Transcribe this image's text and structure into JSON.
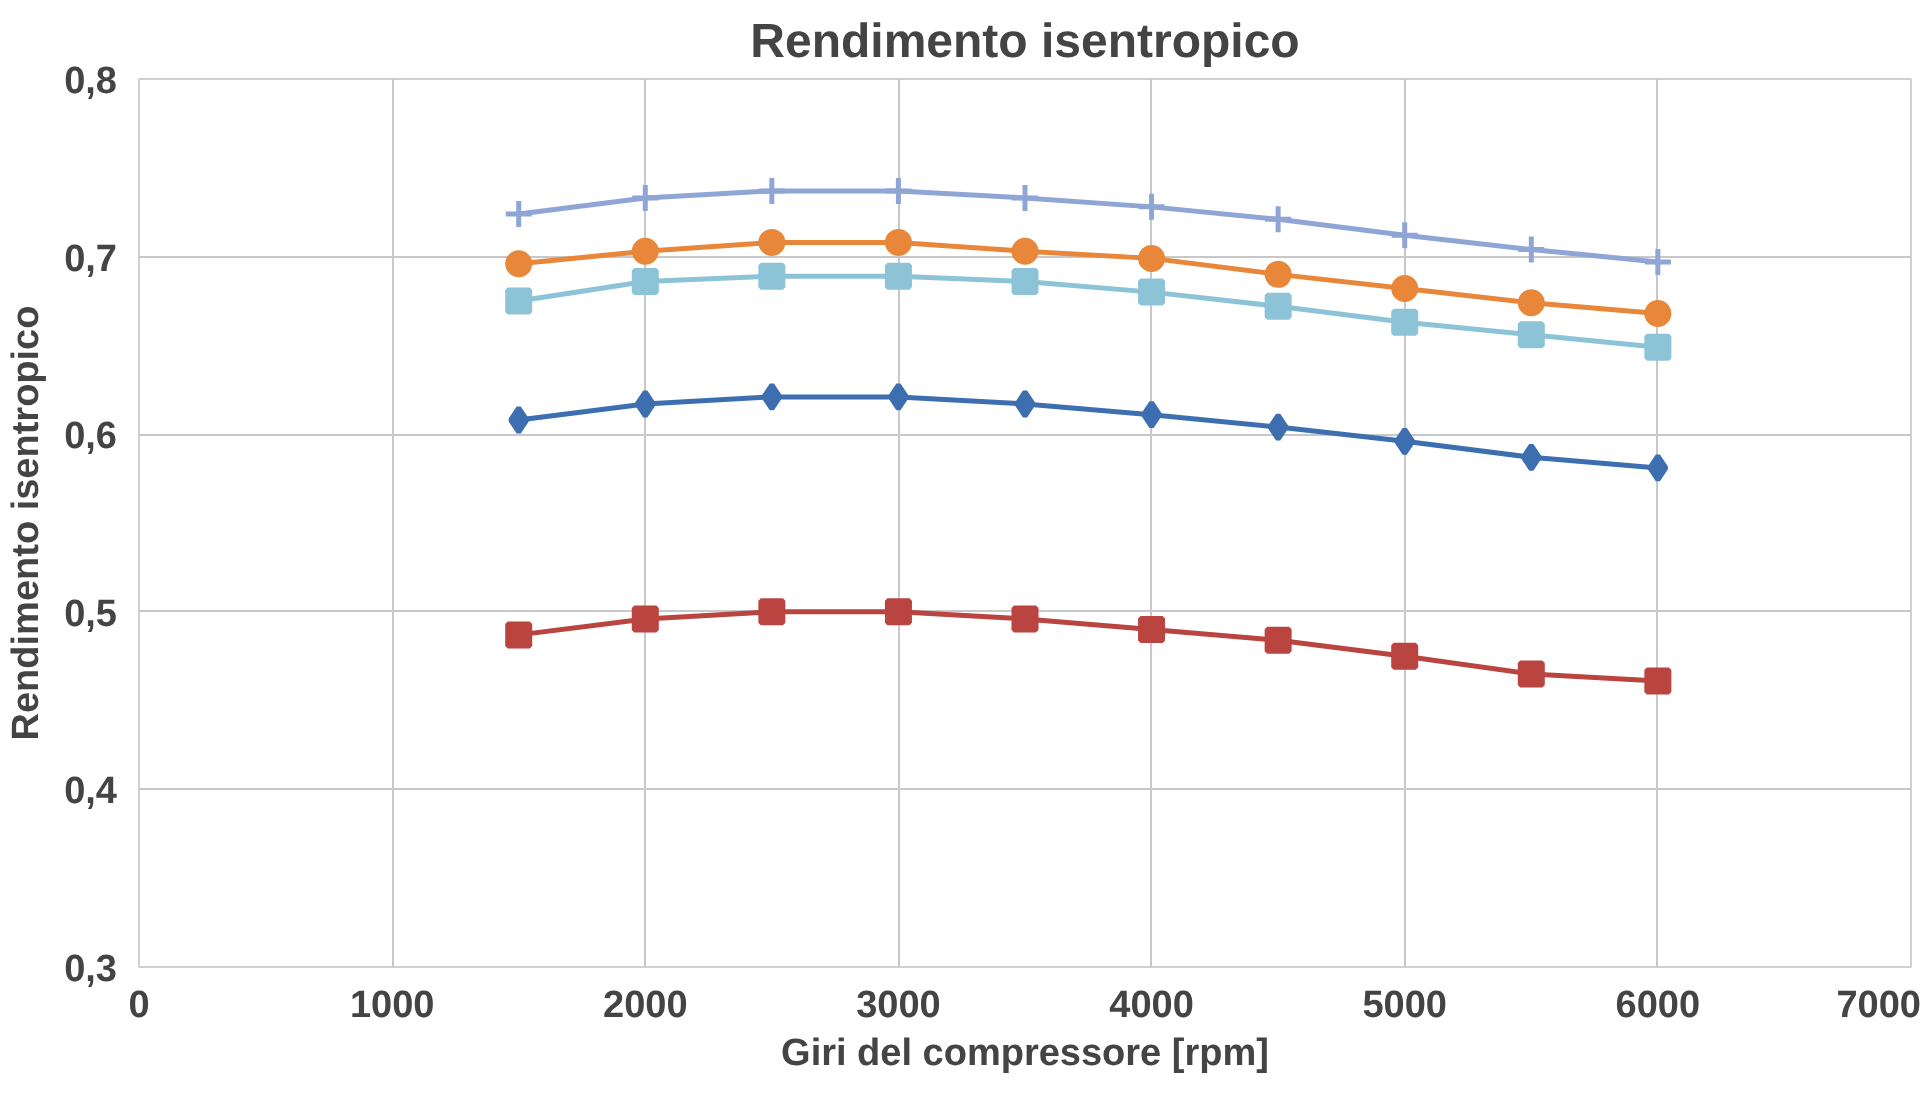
{
  "chart_data": {
    "type": "line",
    "title": "Rendimento isentropico",
    "xlabel": "Giri del compressore [rpm]",
    "ylabel": "Rendimento isentropico",
    "x": [
      1500,
      2000,
      2500,
      3000,
      3500,
      4000,
      4500,
      5000,
      5500,
      6000
    ],
    "series": [
      {
        "color": "#8ea5d6",
        "marker": "cross",
        "values": [
          0.724,
          0.733,
          0.737,
          0.737,
          0.733,
          0.728,
          0.721,
          0.712,
          0.704,
          0.697
        ]
      },
      {
        "color": "#e8873a",
        "marker": "circle",
        "values": [
          0.696,
          0.703,
          0.708,
          0.708,
          0.703,
          0.699,
          0.69,
          0.682,
          0.674,
          0.668
        ]
      },
      {
        "color": "#8cc3d6",
        "marker": "square",
        "values": [
          0.675,
          0.686,
          0.689,
          0.689,
          0.686,
          0.68,
          0.672,
          0.663,
          0.656,
          0.649
        ]
      },
      {
        "color": "#3d6fb0",
        "marker": "diamond",
        "values": [
          0.608,
          0.617,
          0.621,
          0.621,
          0.617,
          0.611,
          0.604,
          0.596,
          0.587,
          0.581
        ]
      },
      {
        "color": "#b94440",
        "marker": "square",
        "values": [
          0.487,
          0.496,
          0.5,
          0.5,
          0.496,
          0.49,
          0.484,
          0.475,
          0.465,
          0.461
        ]
      }
    ],
    "xlim": [
      0,
      7000
    ],
    "ylim": [
      0.3,
      0.8
    ],
    "xticks": [
      0,
      1000,
      2000,
      3000,
      4000,
      5000,
      6000,
      7000
    ],
    "yticks": [
      {
        "value": 0.3,
        "label": "0,3"
      },
      {
        "value": 0.4,
        "label": "0,4"
      },
      {
        "value": 0.5,
        "label": "0,5"
      },
      {
        "value": 0.6,
        "label": "0,6"
      },
      {
        "value": 0.7,
        "label": "0,7"
      },
      {
        "value": 0.8,
        "label": "0,8"
      }
    ],
    "grid": true,
    "line_style": "solid"
  }
}
